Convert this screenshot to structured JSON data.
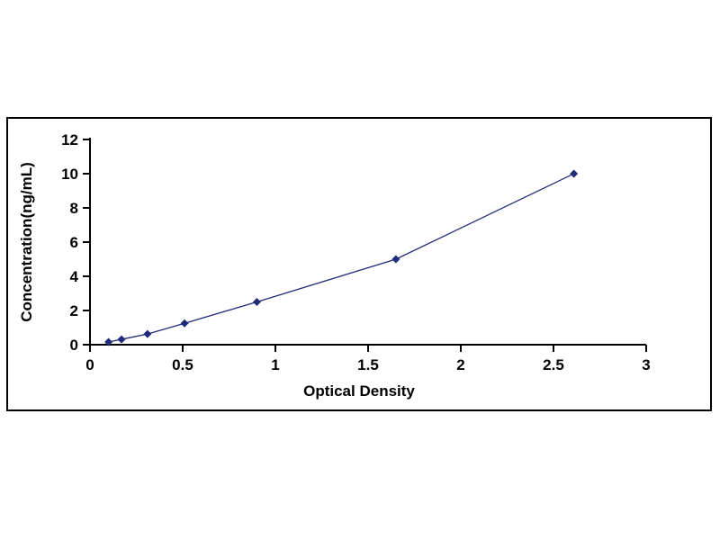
{
  "chart_data": {
    "type": "line",
    "title": "",
    "xlabel": "Optical Density",
    "ylabel": "Concentration(ng/mL)",
    "x": [
      0.1,
      0.17,
      0.31,
      0.51,
      0.9,
      1.65,
      2.61
    ],
    "y": [
      0.156,
      0.312,
      0.625,
      1.25,
      2.5,
      5,
      10
    ],
    "xlim": [
      0,
      3
    ],
    "ylim": [
      0,
      12
    ],
    "x_ticks": [
      0,
      0.5,
      1,
      1.5,
      2,
      2.5,
      3
    ],
    "x_tick_labels": [
      "0",
      "0.5",
      "1",
      "1.5",
      "2",
      "2.5",
      "3"
    ],
    "y_ticks": [
      0,
      2,
      4,
      6,
      8,
      10,
      12
    ],
    "y_tick_labels": [
      "0",
      "2",
      "4",
      "6",
      "8",
      "10",
      "12"
    ],
    "grid": false,
    "legend": "none",
    "marker": "diamond",
    "line_color": "#1f2a7a",
    "marker_color": "#1f2a7a",
    "axis_color": "#000000"
  }
}
